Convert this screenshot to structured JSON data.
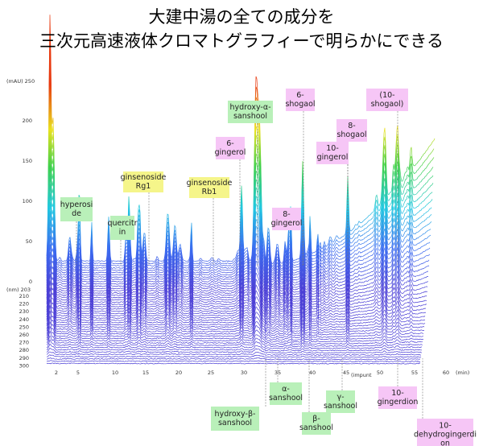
{
  "title": [
    "大建中湯の全ての成分を",
    "三次元高速液体クロマトグラフィーで明らかにできる"
  ],
  "absorbance_axis": {
    "top_label": "(mAU) 250",
    "ticks": [
      "200",
      "150",
      "100",
      "50",
      "0"
    ]
  },
  "wavelength_axis": {
    "top_label": "(nm) 203",
    "ticks": [
      "210",
      "220",
      "230",
      "240",
      "250",
      "260",
      "270",
      "280",
      "290",
      "300"
    ]
  },
  "time_axis": {
    "ticks": [
      "2",
      "5",
      "10",
      "15",
      "20",
      "25",
      "30",
      "35",
      "40",
      "45",
      "50",
      "55",
      "60"
    ],
    "unit": "(min)"
  },
  "annotations": [
    {
      "lines": [
        "hyperosi",
        "de"
      ],
      "group": "green"
    },
    {
      "lines": [
        "quercitr",
        "in"
      ],
      "group": "green"
    },
    {
      "lines": [
        "ginsenoside",
        "Rg1"
      ],
      "group": "yellow"
    },
    {
      "lines": [
        "ginsenoside",
        "Rb1"
      ],
      "group": "yellow"
    },
    {
      "lines": [
        "hydroxy-α-",
        "sanshool"
      ],
      "group": "green"
    },
    {
      "lines": [
        "6-",
        "gingerol"
      ],
      "group": "pink"
    },
    {
      "lines": [
        "6-",
        "shogaol"
      ],
      "group": "pink"
    },
    {
      "lines": [
        "8-",
        "shogaol"
      ],
      "group": "pink"
    },
    {
      "lines": [
        "(10-",
        "shogaol)"
      ],
      "group": "pink"
    },
    {
      "lines": [
        "10-",
        "gingerol"
      ],
      "group": "pink"
    },
    {
      "lines": [
        "8-",
        "gingerol"
      ],
      "group": "pink"
    },
    {
      "lines": [
        "hydroxy-β-",
        "sanshool"
      ],
      "group": "green"
    },
    {
      "lines": [
        "α-",
        "sanshool"
      ],
      "group": "green"
    },
    {
      "lines": [
        "β-",
        "sanshool"
      ],
      "group": "green"
    },
    {
      "lines": [
        "γ-",
        "sanshool"
      ],
      "group": "green"
    },
    {
      "lines": [
        "10-",
        "gingerdion"
      ],
      "group": "pink"
    },
    {
      "lines": [
        "10-",
        "dehydrogingerdi",
        "on"
      ],
      "group": "pink"
    }
  ],
  "note": "(impunt"
}
